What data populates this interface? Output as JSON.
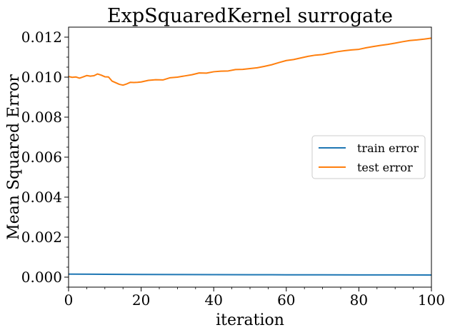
{
  "chart_data": {
    "type": "line",
    "title": "ExpSquaredKernel surrogate",
    "xlabel": "iteration",
    "ylabel": "Mean Squared Error",
    "xlim": [
      0,
      100
    ],
    "ylim": [
      -0.0005,
      0.0125
    ],
    "xticks": [
      0,
      20,
      40,
      60,
      80,
      100
    ],
    "xtick_labels": [
      "0",
      "20",
      "40",
      "60",
      "80",
      "100"
    ],
    "yticks": [
      0.0,
      0.002,
      0.004,
      0.006,
      0.008,
      0.01,
      0.012
    ],
    "ytick_labels": [
      "0.000",
      "0.002",
      "0.004",
      "0.006",
      "0.008",
      "0.010",
      "0.012"
    ],
    "grid": false,
    "legend_position": "center-right",
    "series": [
      {
        "name": "train error",
        "color": "#1f77b4",
        "x": [
          0,
          10,
          20,
          30,
          40,
          50,
          60,
          70,
          80,
          90,
          100
        ],
        "y": [
          0.00015,
          0.000145,
          0.000135,
          0.00013,
          0.000125,
          0.00012,
          0.000118,
          0.000115,
          0.000112,
          0.00011,
          0.000108
        ]
      },
      {
        "name": "test error",
        "color": "#ff7f0e",
        "x": [
          0,
          1,
          2,
          3,
          4,
          5,
          6,
          7,
          8,
          9,
          10,
          11,
          12,
          13,
          14,
          15,
          16,
          17,
          18,
          19,
          20,
          22,
          24,
          26,
          28,
          30,
          32,
          34,
          36,
          38,
          40,
          42,
          44,
          46,
          48,
          50,
          52,
          54,
          56,
          58,
          60,
          62,
          64,
          66,
          68,
          70,
          72,
          74,
          76,
          78,
          80,
          82,
          84,
          86,
          88,
          90,
          92,
          94,
          96,
          98,
          100
        ],
        "y": [
          0.01003,
          0.00999,
          0.01001,
          0.00995,
          0.01001,
          0.01008,
          0.01005,
          0.01007,
          0.01016,
          0.0101,
          0.01002,
          0.01001,
          0.0098,
          0.00972,
          0.00964,
          0.0096,
          0.00966,
          0.00974,
          0.00973,
          0.00974,
          0.00976,
          0.00984,
          0.00987,
          0.00986,
          0.00997,
          0.01,
          0.01006,
          0.01012,
          0.01021,
          0.0102,
          0.01027,
          0.0103,
          0.01031,
          0.01038,
          0.01039,
          0.01043,
          0.01047,
          0.01054,
          0.01062,
          0.01073,
          0.01083,
          0.01088,
          0.01096,
          0.01104,
          0.0111,
          0.01113,
          0.0112,
          0.01127,
          0.01132,
          0.01136,
          0.01139,
          0.01147,
          0.01153,
          0.01159,
          0.01164,
          0.0117,
          0.01177,
          0.01183,
          0.01186,
          0.0119,
          0.01195
        ]
      }
    ]
  }
}
